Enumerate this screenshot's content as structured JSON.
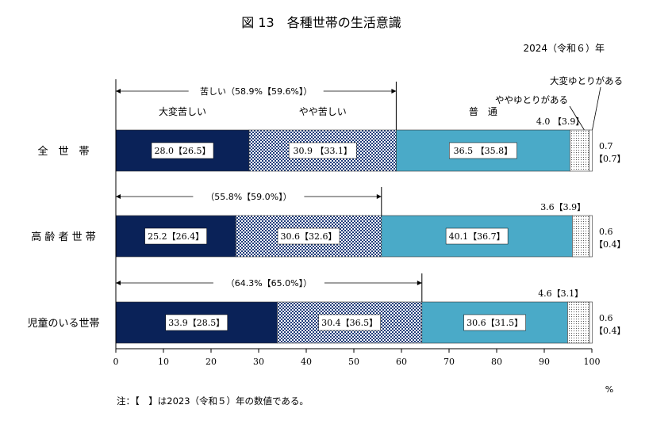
{
  "chart_data": {
    "type": "bar",
    "orientation": "horizontal",
    "stacked": true,
    "title": "図 13　各種世帯の生活意識",
    "subtitle": "2024（令和６）年",
    "x_unit": "%",
    "xlim": [
      0,
      100
    ],
    "x_ticks": [
      "0",
      "10",
      "20",
      "30",
      "40",
      "50",
      "60",
      "70",
      "80",
      "90",
      "100"
    ],
    "categories": [
      "全　世　帯",
      "高 齢 者 世 帯",
      "児童のいる世帯"
    ],
    "series": [
      {
        "name": "大変苦しい",
        "values": [
          28.0,
          25.2,
          33.9
        ],
        "values_2023": [
          26.5,
          26.4,
          28.5
        ],
        "labels": [
          "28.0【26.5】",
          "25.2【26.4】",
          "33.9【28.5】"
        ],
        "color": "#0a2258"
      },
      {
        "name": "やや苦しい",
        "values": [
          30.9,
          30.6,
          30.4
        ],
        "values_2023": [
          33.1,
          32.6,
          36.5
        ],
        "labels": [
          "30.9 【33.1】",
          "30.6【32.6】",
          "30.4【36.5】"
        ],
        "color": "#2b4a8a"
      },
      {
        "name": "普　通",
        "values": [
          36.5,
          40.1,
          30.6
        ],
        "values_2023": [
          35.8,
          36.7,
          31.5
        ],
        "labels": [
          "36.5 【35.8】",
          "40.1【36.7】",
          "30.6【31.5】"
        ],
        "color": "#4aaac8"
      },
      {
        "name": "ややゆとりがある",
        "values": [
          4.0,
          3.6,
          4.6
        ],
        "values_2023": [
          3.9,
          3.9,
          3.1
        ],
        "labels": [
          "4.0 【3.9】",
          "3.6【3.9】",
          "4.6【3.1】"
        ],
        "color": "#dddddd"
      },
      {
        "name": "大変ゆとりがある",
        "values": [
          0.7,
          0.6,
          0.6
        ],
        "values_2023": [
          0.7,
          0.4,
          0.4
        ],
        "labels": [
          "0.7",
          "0.6",
          "0.6"
        ],
        "labels_2023": [
          "【0.7】",
          "【0.4】",
          "【0.4】"
        ],
        "color": "#ffffff"
      }
    ],
    "hardship_totals": [
      {
        "label": "苦しい（58.9%【59.6%】）",
        "value": 58.9
      },
      {
        "label": "（55.8%【59.0%】）",
        "value": 55.8
      },
      {
        "label": "（64.3%【65.0%】）",
        "value": 64.3
      }
    ],
    "note": "注：【　】は2023（令和５）年の数値である。",
    "legend_placement": "inline-above-first-bar",
    "grid": false
  }
}
